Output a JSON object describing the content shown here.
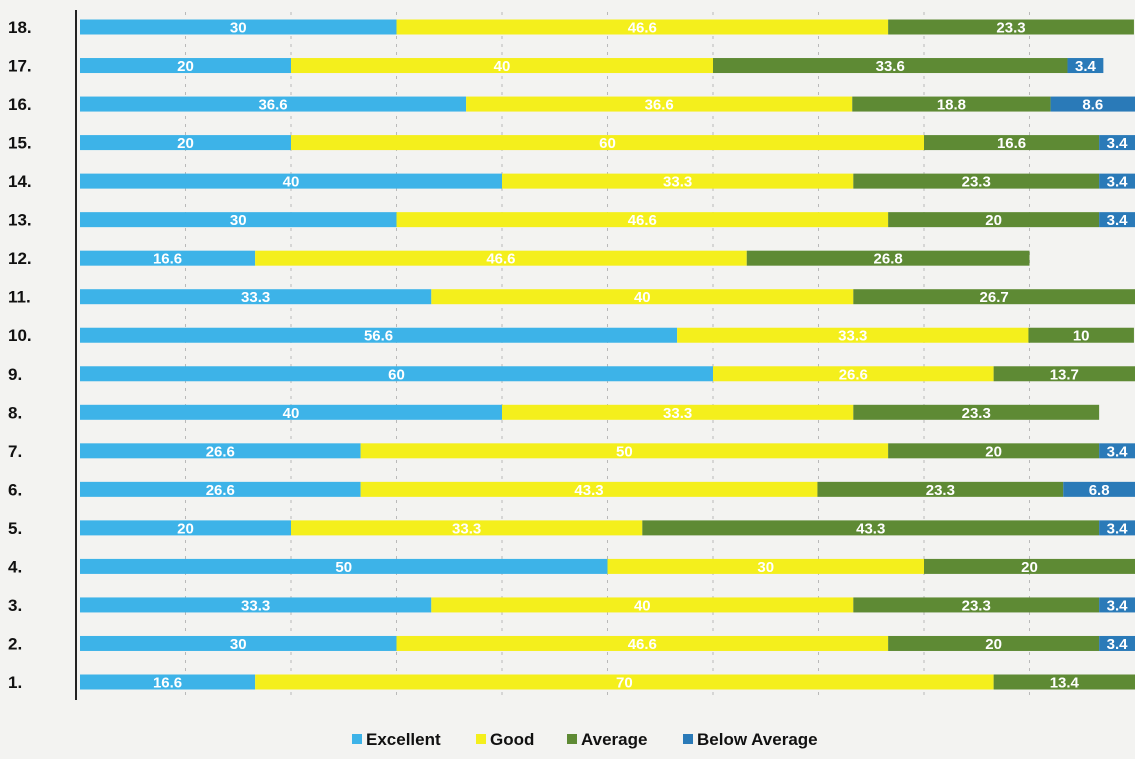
{
  "chart_data": {
    "type": "bar",
    "orientation": "horizontal",
    "stacked": true,
    "categories": [
      "1.",
      "2.",
      "3.",
      "4.",
      "5.",
      "6.",
      "7.",
      "8.",
      "9.",
      "10.",
      "11.",
      "12.",
      "13.",
      "14.",
      "15.",
      "16.",
      "17.",
      "18."
    ],
    "series": [
      {
        "name": "Excellent",
        "color": "#3db3e8",
        "values": [
          16.6,
          30,
          33.3,
          50,
          20,
          26.6,
          26.6,
          40,
          60,
          56.6,
          33.3,
          16.6,
          30,
          40,
          20,
          36.6,
          20,
          30
        ]
      },
      {
        "name": "Good",
        "color": "#f4ef1c",
        "values": [
          70,
          46.6,
          40,
          30,
          33.3,
          43.3,
          50,
          33.3,
          26.6,
          33.3,
          40,
          46.6,
          46.6,
          33.3,
          60,
          36.6,
          40,
          46.6
        ]
      },
      {
        "name": "Average",
        "color": "#5e8a34",
        "values": [
          13.4,
          20,
          23.3,
          20,
          43.3,
          23.3,
          20,
          23.3,
          13.7,
          10,
          26.7,
          26.8,
          20,
          23.3,
          16.6,
          18.8,
          33.6,
          23.3
        ]
      },
      {
        "name": "Below Average",
        "color": "#2a7ab8",
        "values": [
          null,
          3.4,
          3.4,
          null,
          3.4,
          6.8,
          3.4,
          null,
          null,
          null,
          null,
          null,
          3.4,
          3.4,
          3.4,
          8.6,
          3.4,
          null
        ]
      }
    ],
    "xlim": [
      0,
      100
    ],
    "grid": true,
    "legend_position": "bottom"
  }
}
